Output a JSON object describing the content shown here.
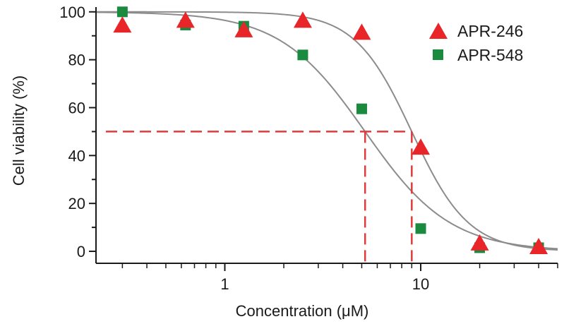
{
  "chart_data": {
    "type": "scatter",
    "xscale": "log",
    "xlabel": "Concentration (μM)",
    "ylabel": "Cell viability (%)",
    "xlim": [
      0.22,
      50
    ],
    "ylim": [
      -5,
      102
    ],
    "x_ticks": [
      {
        "value": 1,
        "label": "1"
      },
      {
        "value": 10,
        "label": "10"
      }
    ],
    "y_ticks": [
      {
        "value": 0,
        "label": "0"
      },
      {
        "value": 20,
        "label": "20"
      },
      {
        "value": 40,
        "label": "40"
      },
      {
        "value": 60,
        "label": "60"
      },
      {
        "value": 80,
        "label": "80"
      },
      {
        "value": 100,
        "label": "100"
      }
    ],
    "legend_position": "top-right",
    "series": [
      {
        "name": "APR-246",
        "marker": "triangle",
        "color": "#e8262a",
        "x": [
          0.3,
          0.63,
          1.25,
          2.5,
          5,
          10,
          20,
          40
        ],
        "y": [
          94,
          96,
          92,
          96,
          91,
          43,
          3,
          1.5
        ],
        "fit": {
          "top": 100,
          "bottom": 0,
          "ic50": 9.0,
          "hill": 3.0
        }
      },
      {
        "name": "APR-548",
        "marker": "square",
        "color": "#1a8a3e",
        "x": [
          0.3,
          0.63,
          1.25,
          2.5,
          5,
          10,
          20,
          40
        ],
        "y": [
          100,
          94.5,
          94,
          82,
          59.5,
          9.5,
          1.5,
          1.5
        ],
        "fit": {
          "top": 100,
          "bottom": 0,
          "ic50": 5.2,
          "hill": 2.0
        }
      }
    ],
    "reference_lines": {
      "color": "#e03a3a",
      "y": 50,
      "x_values": [
        5.2,
        9.0
      ]
    },
    "fit_line_color": "#8c8c8c"
  }
}
